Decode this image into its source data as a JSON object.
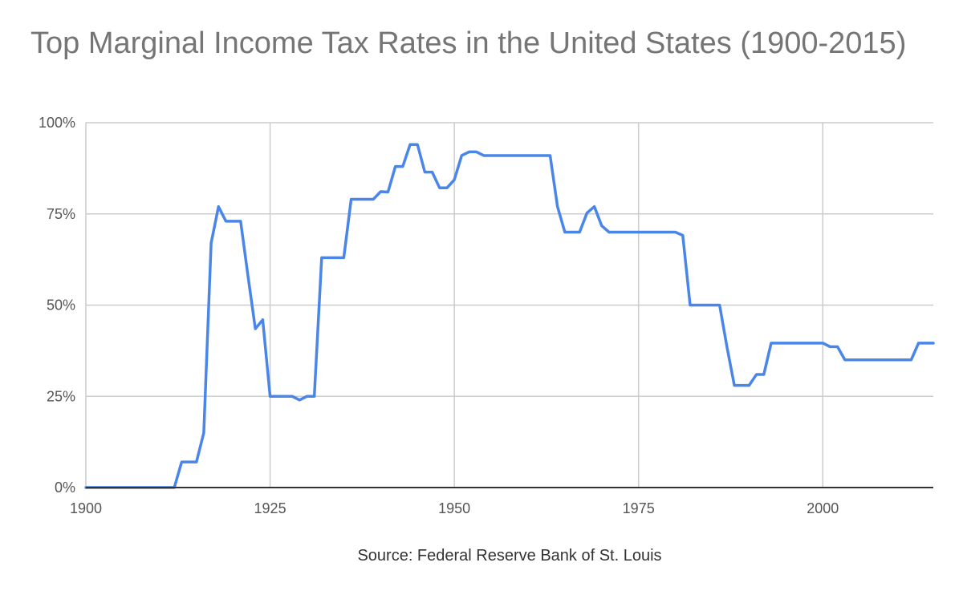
{
  "chart_data": {
    "type": "line",
    "title": "Top Marginal Income Tax Rates in the United States (1900-2015)",
    "xlabel": "Source: Federal Reserve Bank of St. Louis",
    "ylabel": "",
    "xlim": [
      1900,
      2015
    ],
    "ylim": [
      0,
      100
    ],
    "x_ticks": [
      1900,
      1925,
      1950,
      1975,
      2000
    ],
    "y_ticks": [
      0,
      25,
      50,
      75,
      100
    ],
    "y_tick_labels": [
      "0%",
      "25%",
      "50%",
      "75%",
      "100%"
    ],
    "grid": true,
    "series": [
      {
        "color": "#4a86e8",
        "x": [
          1900,
          1912,
          1913,
          1915,
          1916,
          1917,
          1918,
          1919,
          1921,
          1922,
          1923,
          1924,
          1925,
          1928,
          1929,
          1930,
          1931,
          1932,
          1935,
          1936,
          1939,
          1940,
          1941,
          1942,
          1943,
          1944,
          1945,
          1946,
          1947,
          1948,
          1949,
          1950,
          1951,
          1952,
          1953,
          1954,
          1963,
          1964,
          1965,
          1967,
          1968,
          1969,
          1970,
          1971,
          1980,
          1981,
          1982,
          1986,
          1987,
          1988,
          1990,
          1991,
          1992,
          1993,
          2000,
          2001,
          2002,
          2003,
          2012,
          2013,
          2015
        ],
        "y": [
          0,
          0,
          7,
          7,
          15,
          67,
          77,
          73,
          73,
          58,
          43.5,
          46,
          25,
          25,
          24,
          25,
          25,
          63,
          63,
          79,
          79,
          81.1,
          81,
          88,
          88,
          94,
          94,
          86.45,
          86.45,
          82.13,
          82.13,
          84.36,
          91,
          92,
          92,
          91,
          91,
          77,
          70,
          70,
          75.25,
          77,
          71.75,
          70,
          70,
          69.13,
          50,
          50,
          38.5,
          28,
          28,
          31,
          31,
          39.6,
          39.6,
          38.6,
          38.6,
          35,
          35,
          39.6,
          39.6
        ]
      }
    ]
  }
}
